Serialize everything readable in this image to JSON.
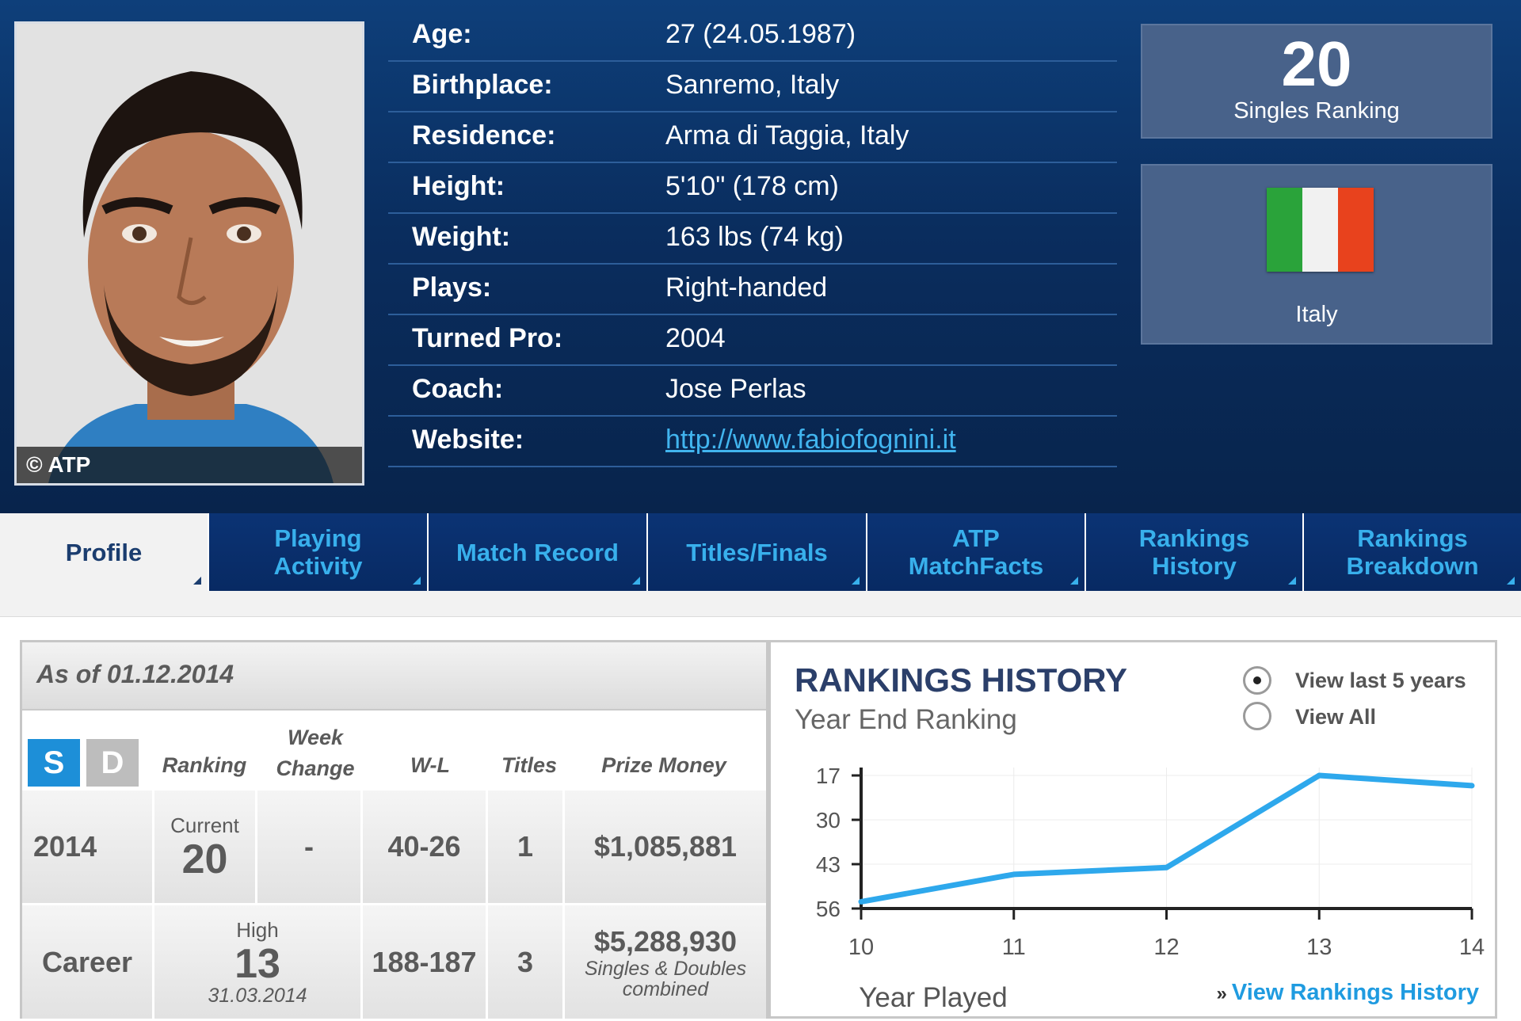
{
  "photo": {
    "credit": "© ATP"
  },
  "profile": [
    {
      "label": "Age:",
      "value": "27 (24.05.1987)"
    },
    {
      "label": "Birthplace:",
      "value": "Sanremo, Italy"
    },
    {
      "label": "Residence:",
      "value": "Arma di Taggia, Italy"
    },
    {
      "label": "Height:",
      "value": "5'10\" (178 cm)"
    },
    {
      "label": "Weight:",
      "value": "163 lbs (74 kg)"
    },
    {
      "label": "Plays:",
      "value": "Right-handed"
    },
    {
      "label": "Turned Pro:",
      "value": "2004"
    },
    {
      "label": "Coach:",
      "value": "Jose Perlas"
    },
    {
      "label": "Website:",
      "value": "http://www.fabiofognini.it"
    }
  ],
  "ranking_box": {
    "number": "20",
    "label": "Singles Ranking"
  },
  "country_box": {
    "name": "Italy",
    "flag_colors": [
      "#2aa33a",
      "#f1f1f1",
      "#e8421d"
    ]
  },
  "tabs": [
    {
      "label": "Profile",
      "active": true
    },
    {
      "label": "Playing Activity"
    },
    {
      "label": "Match Record"
    },
    {
      "label": "Titles/Finals"
    },
    {
      "label": "ATP MatchFacts"
    },
    {
      "label": "Rankings History"
    },
    {
      "label": "Rankings Breakdown"
    }
  ],
  "stats": {
    "as_of": "As of 01.12.2014",
    "toggle": {
      "singles": "S",
      "doubles": "D",
      "selected": "S"
    },
    "headers": {
      "ranking": "Ranking",
      "week_change": "Week Change",
      "wl": "W-L",
      "titles": "Titles",
      "prize": "Prize Money"
    },
    "rows": [
      {
        "label": "2014",
        "rank_caption": "Current",
        "rank": "20",
        "rank_date": "",
        "week_change": "-",
        "wl": "40-26",
        "titles": "1",
        "prize": "$1,085,881",
        "prize_note": ""
      },
      {
        "label": "Career",
        "rank_caption": "High",
        "rank": "13",
        "rank_date": "31.03.2014",
        "week_change": "",
        "wl": "188-187",
        "titles": "3",
        "prize": "$5,288,930",
        "prize_note": "Singles & Doubles combined"
      }
    ]
  },
  "rankings_history": {
    "title": "RANKINGS HISTORY",
    "subtitle": "Year End Ranking",
    "options": [
      {
        "label": "View last 5 years",
        "selected": true
      },
      {
        "label": "View All",
        "selected": false
      }
    ],
    "link": "View Rankings History",
    "link_prefix": "»",
    "chart_data": {
      "type": "line",
      "x": [
        "10",
        "11",
        "12",
        "13",
        "14"
      ],
      "y": [
        54,
        46,
        44,
        17,
        20
      ],
      "xlabel": "Year Played",
      "ylabel": "",
      "ylim": [
        56,
        17
      ],
      "yticks": [
        "17",
        "30",
        "43",
        "56"
      ],
      "y_inverted": true,
      "line_color": "#2ea8ec"
    }
  }
}
